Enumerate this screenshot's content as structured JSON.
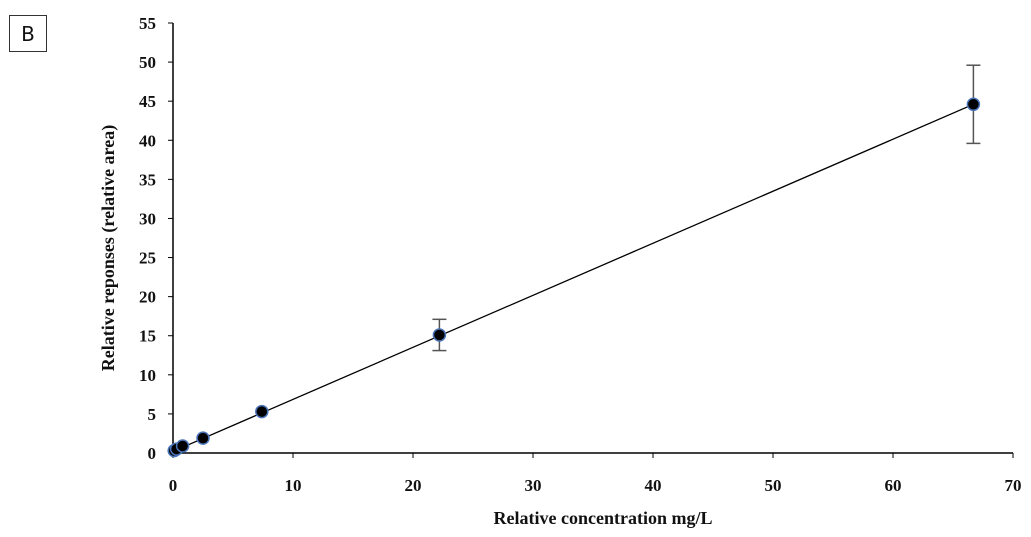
{
  "panel_label": "B",
  "chart_data": {
    "type": "scatter",
    "title": "",
    "xlabel": "Relative concentration mg/L",
    "ylabel": "Relative reponses (relative area)",
    "xlim": [
      0,
      70
    ],
    "ylim": [
      0,
      55
    ],
    "x_ticks": [
      0,
      10,
      20,
      30,
      40,
      50,
      60,
      70
    ],
    "y_ticks": [
      0,
      5,
      10,
      15,
      20,
      25,
      30,
      35,
      40,
      45,
      50,
      55
    ],
    "grid": false,
    "legend": "none",
    "series": [
      {
        "x": [
          0.1,
          0.3,
          0.8,
          2.5,
          7.4,
          22.2,
          66.7
        ],
        "y": [
          0.3,
          0.5,
          0.9,
          1.9,
          5.3,
          15.1,
          44.6
        ],
        "error": [
          0,
          0,
          0,
          0,
          0,
          2.0,
          5.0
        ]
      }
    ],
    "trendline": {
      "type": "linear",
      "from": [
        0,
        0.2
      ],
      "to": [
        66.7,
        44.6
      ]
    },
    "colors": {
      "marker_fill": "#000000",
      "marker_edge": "#4a74b8",
      "line": "#000000",
      "error_bar": "#555555"
    }
  }
}
